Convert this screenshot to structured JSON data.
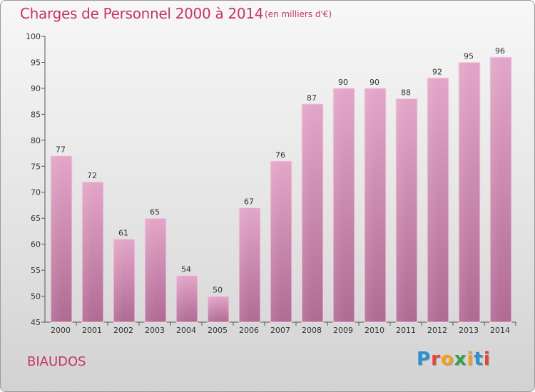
{
  "header": {
    "title": "Charges de Personnel 2000 à 2014",
    "subtitle": "(en milliers d'€)"
  },
  "footer": {
    "commune": "BIAUDOS",
    "logo": "Proxiti"
  },
  "colors": {
    "accent": "#c4355f",
    "bar_top": "#e3a6c8",
    "bar_bottom": "#b06b93",
    "logo_letters": [
      "#2f8fd0",
      "#e0473a",
      "#f0a020",
      "#3aa048",
      "#f0a020",
      "#2f8fd0",
      "#e0473a"
    ]
  },
  "chart_data": {
    "type": "bar",
    "title": "Charges de Personnel 2000 à 2014",
    "subtitle": "(en milliers d'€)",
    "xlabel": "",
    "ylabel": "",
    "categories": [
      "2000",
      "2001",
      "2002",
      "2003",
      "2004",
      "2005",
      "2006",
      "2007",
      "2008",
      "2009",
      "2010",
      "2011",
      "2012",
      "2013",
      "2014"
    ],
    "values": [
      77,
      72,
      61,
      65,
      54,
      50,
      67,
      76,
      87,
      90,
      90,
      88,
      92,
      95,
      96
    ],
    "ylim": [
      45,
      100
    ],
    "yticks": [
      45,
      50,
      55,
      60,
      65,
      70,
      75,
      80,
      85,
      90,
      95,
      100
    ],
    "grid": false,
    "legend": "none"
  }
}
